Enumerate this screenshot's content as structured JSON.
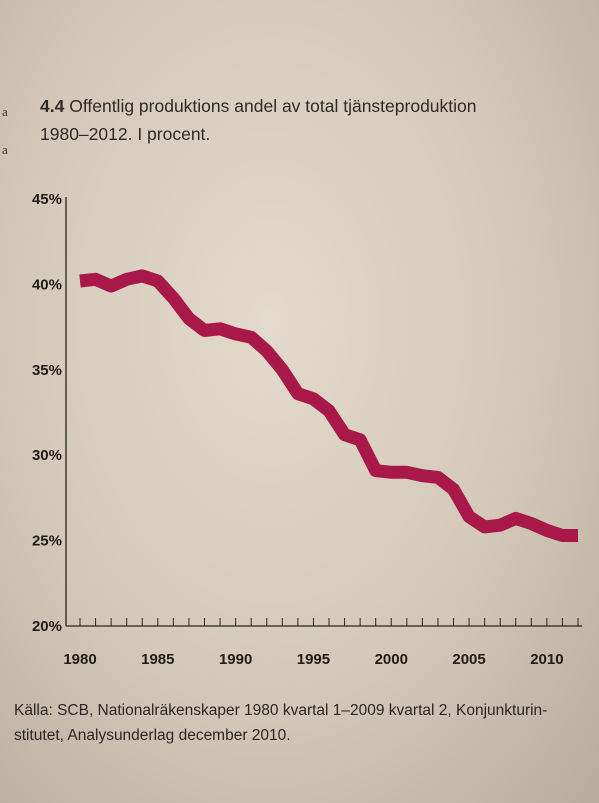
{
  "margin_marks": [
    "a",
    "a"
  ],
  "figure": {
    "number": "4.4",
    "title_line1": "Offentlig produktions andel av total tjänsteproduktion",
    "title_line2": "1980–2012. I procent."
  },
  "source_text": "Källa: SCB, Nationalräkenskaper 1980 kvartal 1–2009 kvartal 2, Konjunkturin-\nstitutet, Analysunderlag december 2010.",
  "colors": {
    "line": "#a8194a",
    "axis": "#2b2622"
  },
  "chart_data": {
    "type": "line",
    "title": "Offentlig produktions andel av total tjänsteproduktion 1980–2012. I procent.",
    "xlabel": "",
    "ylabel": "",
    "xlim": [
      1980,
      2012
    ],
    "ylim": [
      20,
      45
    ],
    "x_ticks": [
      1980,
      1985,
      1990,
      1995,
      2000,
      2005,
      2010
    ],
    "x_tick_labels": [
      "1980",
      "1985",
      "1990",
      "1995",
      "2000",
      "2005",
      "2010"
    ],
    "y_ticks": [
      20,
      25,
      30,
      35,
      40,
      45
    ],
    "y_tick_labels": [
      "20%",
      "25%",
      "30%",
      "35%",
      "40%",
      "45%"
    ],
    "grid": false,
    "series": [
      {
        "x": [
          1980,
          1981,
          1982,
          1983,
          1984,
          1985,
          1986,
          1987,
          1988,
          1989,
          1990,
          1991,
          1992,
          1993,
          1994,
          1995,
          1996,
          1997,
          1998,
          1999,
          2000,
          2001,
          2002,
          2003,
          2004,
          2005,
          2006,
          2007,
          2008,
          2009,
          2010,
          2011,
          2012
        ],
        "values": [
          40.2,
          40.3,
          39.9,
          40.3,
          40.5,
          40.2,
          39.2,
          38.0,
          37.3,
          37.4,
          37.1,
          36.9,
          36.1,
          35.0,
          33.6,
          33.3,
          32.6,
          31.2,
          30.9,
          29.1,
          29.0,
          29.0,
          28.8,
          28.7,
          28.0,
          26.4,
          25.8,
          25.9,
          26.3,
          26.0,
          25.6,
          25.3,
          25.3
        ]
      }
    ]
  }
}
